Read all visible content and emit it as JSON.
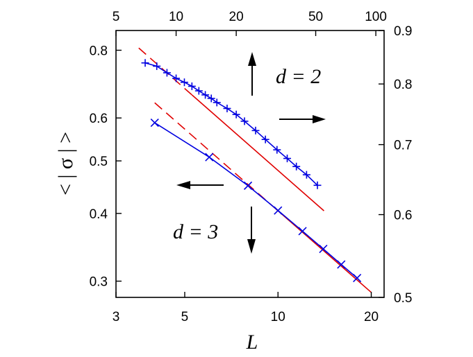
{
  "chart_data": {
    "type": "line",
    "title": "",
    "xlabel": "L",
    "ylabel": "< | σ | >",
    "x_scale": "log",
    "y_scale": "log",
    "bottom_x_axis": {
      "ticks": [
        3,
        5,
        10,
        20
      ],
      "tick_labels": [
        "3",
        "5",
        "10",
        "20"
      ],
      "range": [
        3,
        22
      ]
    },
    "top_x_axis": {
      "ticks": [
        5,
        10,
        20,
        50,
        100
      ],
      "tick_labels": [
        "5",
        "10",
        "20",
        "50",
        "100"
      ],
      "range": [
        5,
        110
      ]
    },
    "left_y_axis": {
      "ticks": [
        0.3,
        0.4,
        0.5,
        0.6,
        0.8
      ],
      "tick_labels": [
        "0.3",
        "0.4",
        "0.5",
        "0.6",
        "0.8"
      ],
      "range": [
        0.28,
        0.87
      ]
    },
    "right_y_axis": {
      "ticks": [
        0.5,
        0.6,
        0.7,
        0.8,
        0.9
      ],
      "tick_labels": [
        "0.5",
        "0.6",
        "0.7",
        "0.8",
        "0.9"
      ],
      "range": [
        0.5,
        0.9
      ]
    },
    "series": [
      {
        "name": "d = 2",
        "axes": "top-right",
        "marker": "plus",
        "color": "#0000e0",
        "x": [
          7,
          8,
          9,
          10,
          11,
          12,
          13,
          14,
          15,
          16,
          18,
          20,
          22,
          25,
          28,
          32,
          36,
          40,
          45,
          51
        ],
        "y": [
          0.838,
          0.832,
          0.82,
          0.81,
          0.803,
          0.796,
          0.788,
          0.781,
          0.775,
          0.768,
          0.758,
          0.748,
          0.737,
          0.722,
          0.708,
          0.692,
          0.679,
          0.667,
          0.655,
          0.64
        ]
      },
      {
        "name": "d = 2 fit",
        "axes": "top-right",
        "style": "dashed-to-solid",
        "color": "#e00000",
        "x": [
          6.5,
          12,
          55
        ],
        "y": [
          0.866,
          0.781,
          0.605
        ]
      },
      {
        "name": "d = 3",
        "axes": "bottom-left",
        "marker": "cross",
        "color": "#0000e0",
        "x": [
          4,
          6,
          8,
          10,
          12,
          14,
          16,
          18
        ],
        "y": [
          0.588,
          0.508,
          0.45,
          0.405,
          0.371,
          0.344,
          0.322,
          0.304
        ]
      },
      {
        "name": "d = 3 fit",
        "axes": "bottom-left",
        "style": "dashed-to-solid",
        "color": "#e00000",
        "x": [
          4,
          9.5,
          20
        ],
        "y": [
          0.64,
          0.415,
          0.286
        ]
      }
    ],
    "annotations": [
      {
        "text": "d = 2",
        "arrows": [
          "up",
          "right"
        ]
      },
      {
        "text": "d = 3",
        "arrows": [
          "down",
          "left"
        ]
      }
    ],
    "grid": false,
    "legend": "none"
  }
}
